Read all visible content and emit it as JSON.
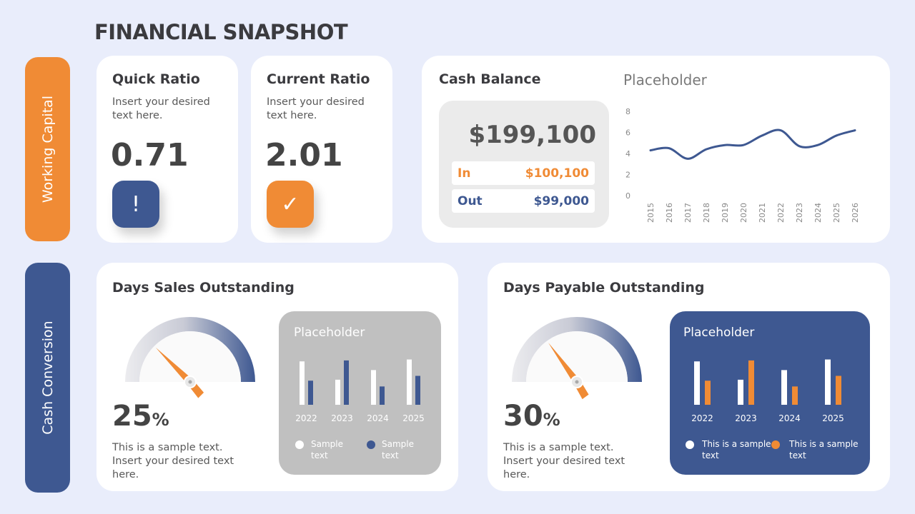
{
  "title": "FINANCIAL SNAPSHOT",
  "sections": {
    "working_capital": "Working Capital",
    "cash_conversion": "Cash Conversion"
  },
  "colors": {
    "orange": "#f08b35",
    "blue": "#3e5891",
    "background": "#e9edfb"
  },
  "quick_ratio": {
    "title": "Quick Ratio",
    "text": "Insert your desired text here.",
    "value": "0.71",
    "icon": "exclamation-icon"
  },
  "current_ratio": {
    "title": "Current Ratio",
    "text": "Insert your desired text here.",
    "value": "2.01",
    "icon": "checkmark-icon"
  },
  "cash_balance": {
    "title": "Cash Balance",
    "total": "$199,100",
    "in_label": "In",
    "in_value": "$100,100",
    "out_label": "Out",
    "out_value": "$99,000"
  },
  "chart_data": [
    {
      "type": "line",
      "title": "Placeholder",
      "x": [
        "2015",
        "2016",
        "2017",
        "2018",
        "2019",
        "2020",
        "2021",
        "2022",
        "2023",
        "2024",
        "2025",
        "2026"
      ],
      "values": [
        4.3,
        4.5,
        3.5,
        4.4,
        4.8,
        4.8,
        5.7,
        6.2,
        4.7,
        4.8,
        5.7,
        6.2
      ],
      "ylim": [
        0,
        8
      ],
      "yticks": [
        "0",
        "2",
        "4",
        "6",
        "8"
      ],
      "grid": false
    },
    {
      "type": "bar",
      "title": "Placeholder",
      "categories": [
        "2022",
        "2023",
        "2024",
        "2025"
      ],
      "series": [
        {
          "name": "Sample text",
          "values": [
            4.5,
            2.6,
            3.6,
            4.7
          ]
        },
        {
          "name": "Sample text",
          "values": [
            2.5,
            4.6,
            1.9,
            3.0
          ]
        }
      ]
    },
    {
      "type": "bar",
      "title": "Placeholder",
      "categories": [
        "2022",
        "2023",
        "2024",
        "2025"
      ],
      "series": [
        {
          "name": "This is a sample text",
          "values": [
            4.5,
            2.6,
            3.6,
            4.7
          ]
        },
        {
          "name": "This is a sample text",
          "values": [
            2.5,
            4.6,
            1.9,
            3.0
          ]
        }
      ]
    }
  ],
  "dso": {
    "title": "Days Sales Outstanding",
    "value": "25",
    "unit": "%",
    "gauge_percent": 25,
    "text": "This is a sample text.  Insert your desired text here."
  },
  "dpo": {
    "title": "Days Payable Outstanding",
    "value": "30",
    "unit": "%",
    "gauge_percent": 30,
    "text": "This is a sample text.  Insert your desired text here."
  }
}
